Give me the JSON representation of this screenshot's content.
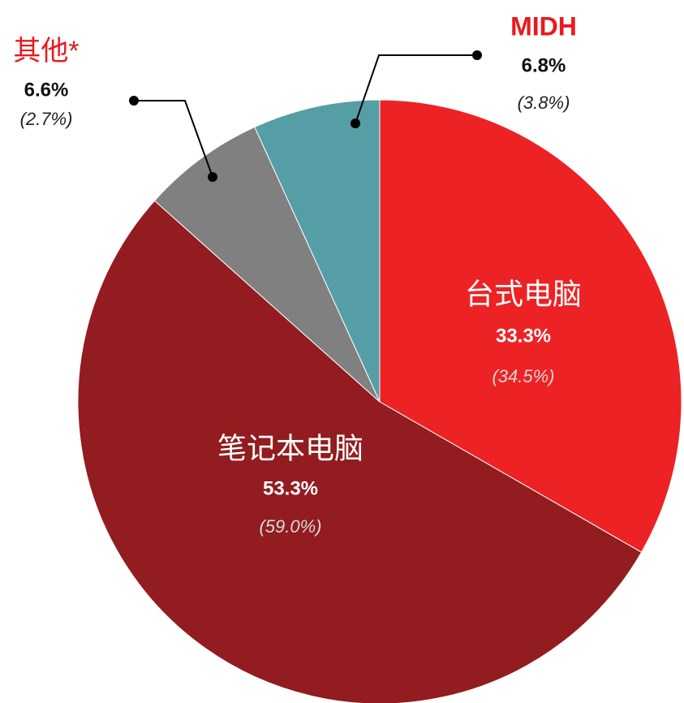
{
  "chart_data": {
    "type": "pie",
    "categories": [
      "台式电脑",
      "笔记本电脑",
      "其他*",
      "MIDH"
    ],
    "values": [
      33.3,
      53.3,
      6.6,
      6.8
    ],
    "value_labels": [
      "33.3%",
      "53.3%",
      "6.6%",
      "6.8%"
    ],
    "previous_values": [
      34.5,
      59.0,
      2.7,
      3.8
    ],
    "previous_value_labels": [
      "(34.5%)",
      "(59.0%)",
      "(2.7%)",
      "(3.8%)"
    ],
    "colors": [
      "#ed2224",
      "#921c1f",
      "#808080",
      "#559ea5"
    ]
  }
}
